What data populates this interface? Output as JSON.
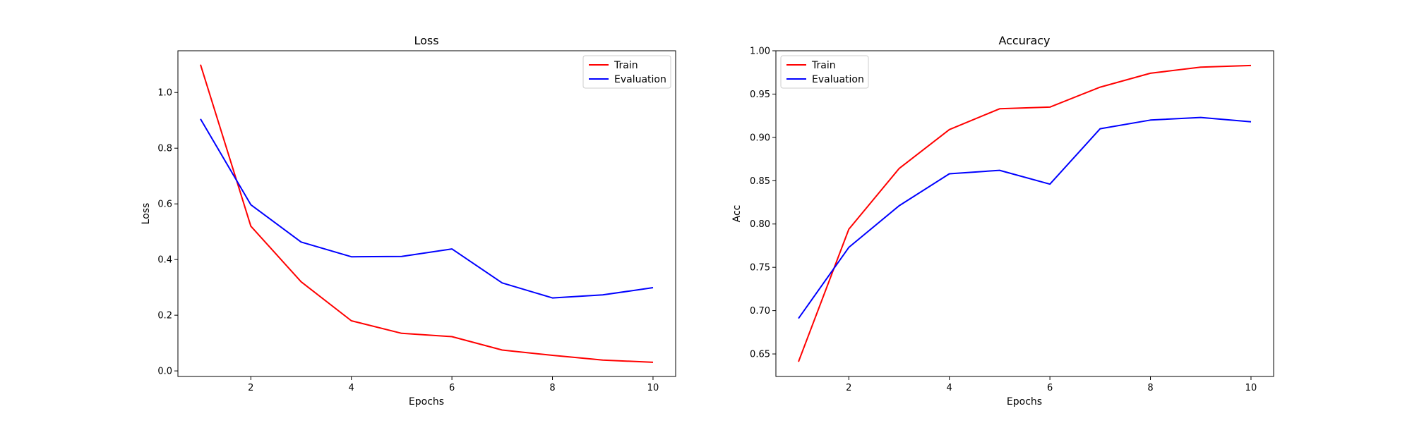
{
  "chart_data": [
    {
      "type": "line",
      "title": "Loss",
      "xlabel": "Epochs",
      "ylabel": "Loss",
      "xlim": [
        0.55,
        10.45
      ],
      "ylim": [
        -0.02,
        1.15
      ],
      "x_ticks": [
        2,
        4,
        6,
        8,
        10
      ],
      "y_ticks": [
        0.0,
        0.2,
        0.4,
        0.6,
        0.8,
        1.0
      ],
      "y_tick_labels": [
        "0.0",
        "0.2",
        "0.4",
        "0.6",
        "0.8",
        "1.0"
      ],
      "legend_position": "upper right",
      "grid": false,
      "x": [
        1,
        2,
        3,
        4,
        5,
        6,
        7,
        8,
        9,
        10
      ],
      "series": [
        {
          "name": "Train",
          "color": "#ff0000",
          "values": [
            1.1,
            0.52,
            0.32,
            0.18,
            0.135,
            0.123,
            0.075,
            0.056,
            0.039,
            0.031
          ]
        },
        {
          "name": "Evaluation",
          "color": "#0000ff",
          "values": [
            0.905,
            0.597,
            0.463,
            0.41,
            0.411,
            0.438,
            0.316,
            0.262,
            0.273,
            0.299
          ]
        }
      ]
    },
    {
      "type": "line",
      "title": "Accuracy",
      "xlabel": "Epochs",
      "ylabel": "Acc",
      "xlim": [
        0.55,
        10.45
      ],
      "ylim": [
        0.624,
        1.0
      ],
      "x_ticks": [
        2,
        4,
        6,
        8,
        10
      ],
      "y_ticks": [
        0.65,
        0.7,
        0.75,
        0.8,
        0.85,
        0.9,
        0.95,
        1.0
      ],
      "y_tick_labels": [
        "0.65",
        "0.70",
        "0.75",
        "0.80",
        "0.85",
        "0.90",
        "0.95",
        "1.00"
      ],
      "legend_position": "upper left",
      "grid": false,
      "x": [
        1,
        2,
        3,
        4,
        5,
        6,
        7,
        8,
        9,
        10
      ],
      "series": [
        {
          "name": "Train",
          "color": "#ff0000",
          "values": [
            0.641,
            0.794,
            0.864,
            0.909,
            0.933,
            0.935,
            0.958,
            0.974,
            0.981,
            0.983
          ]
        },
        {
          "name": "Evaluation",
          "color": "#0000ff",
          "values": [
            0.691,
            0.773,
            0.821,
            0.858,
            0.862,
            0.846,
            0.91,
            0.92,
            0.923,
            0.918
          ]
        }
      ]
    }
  ]
}
